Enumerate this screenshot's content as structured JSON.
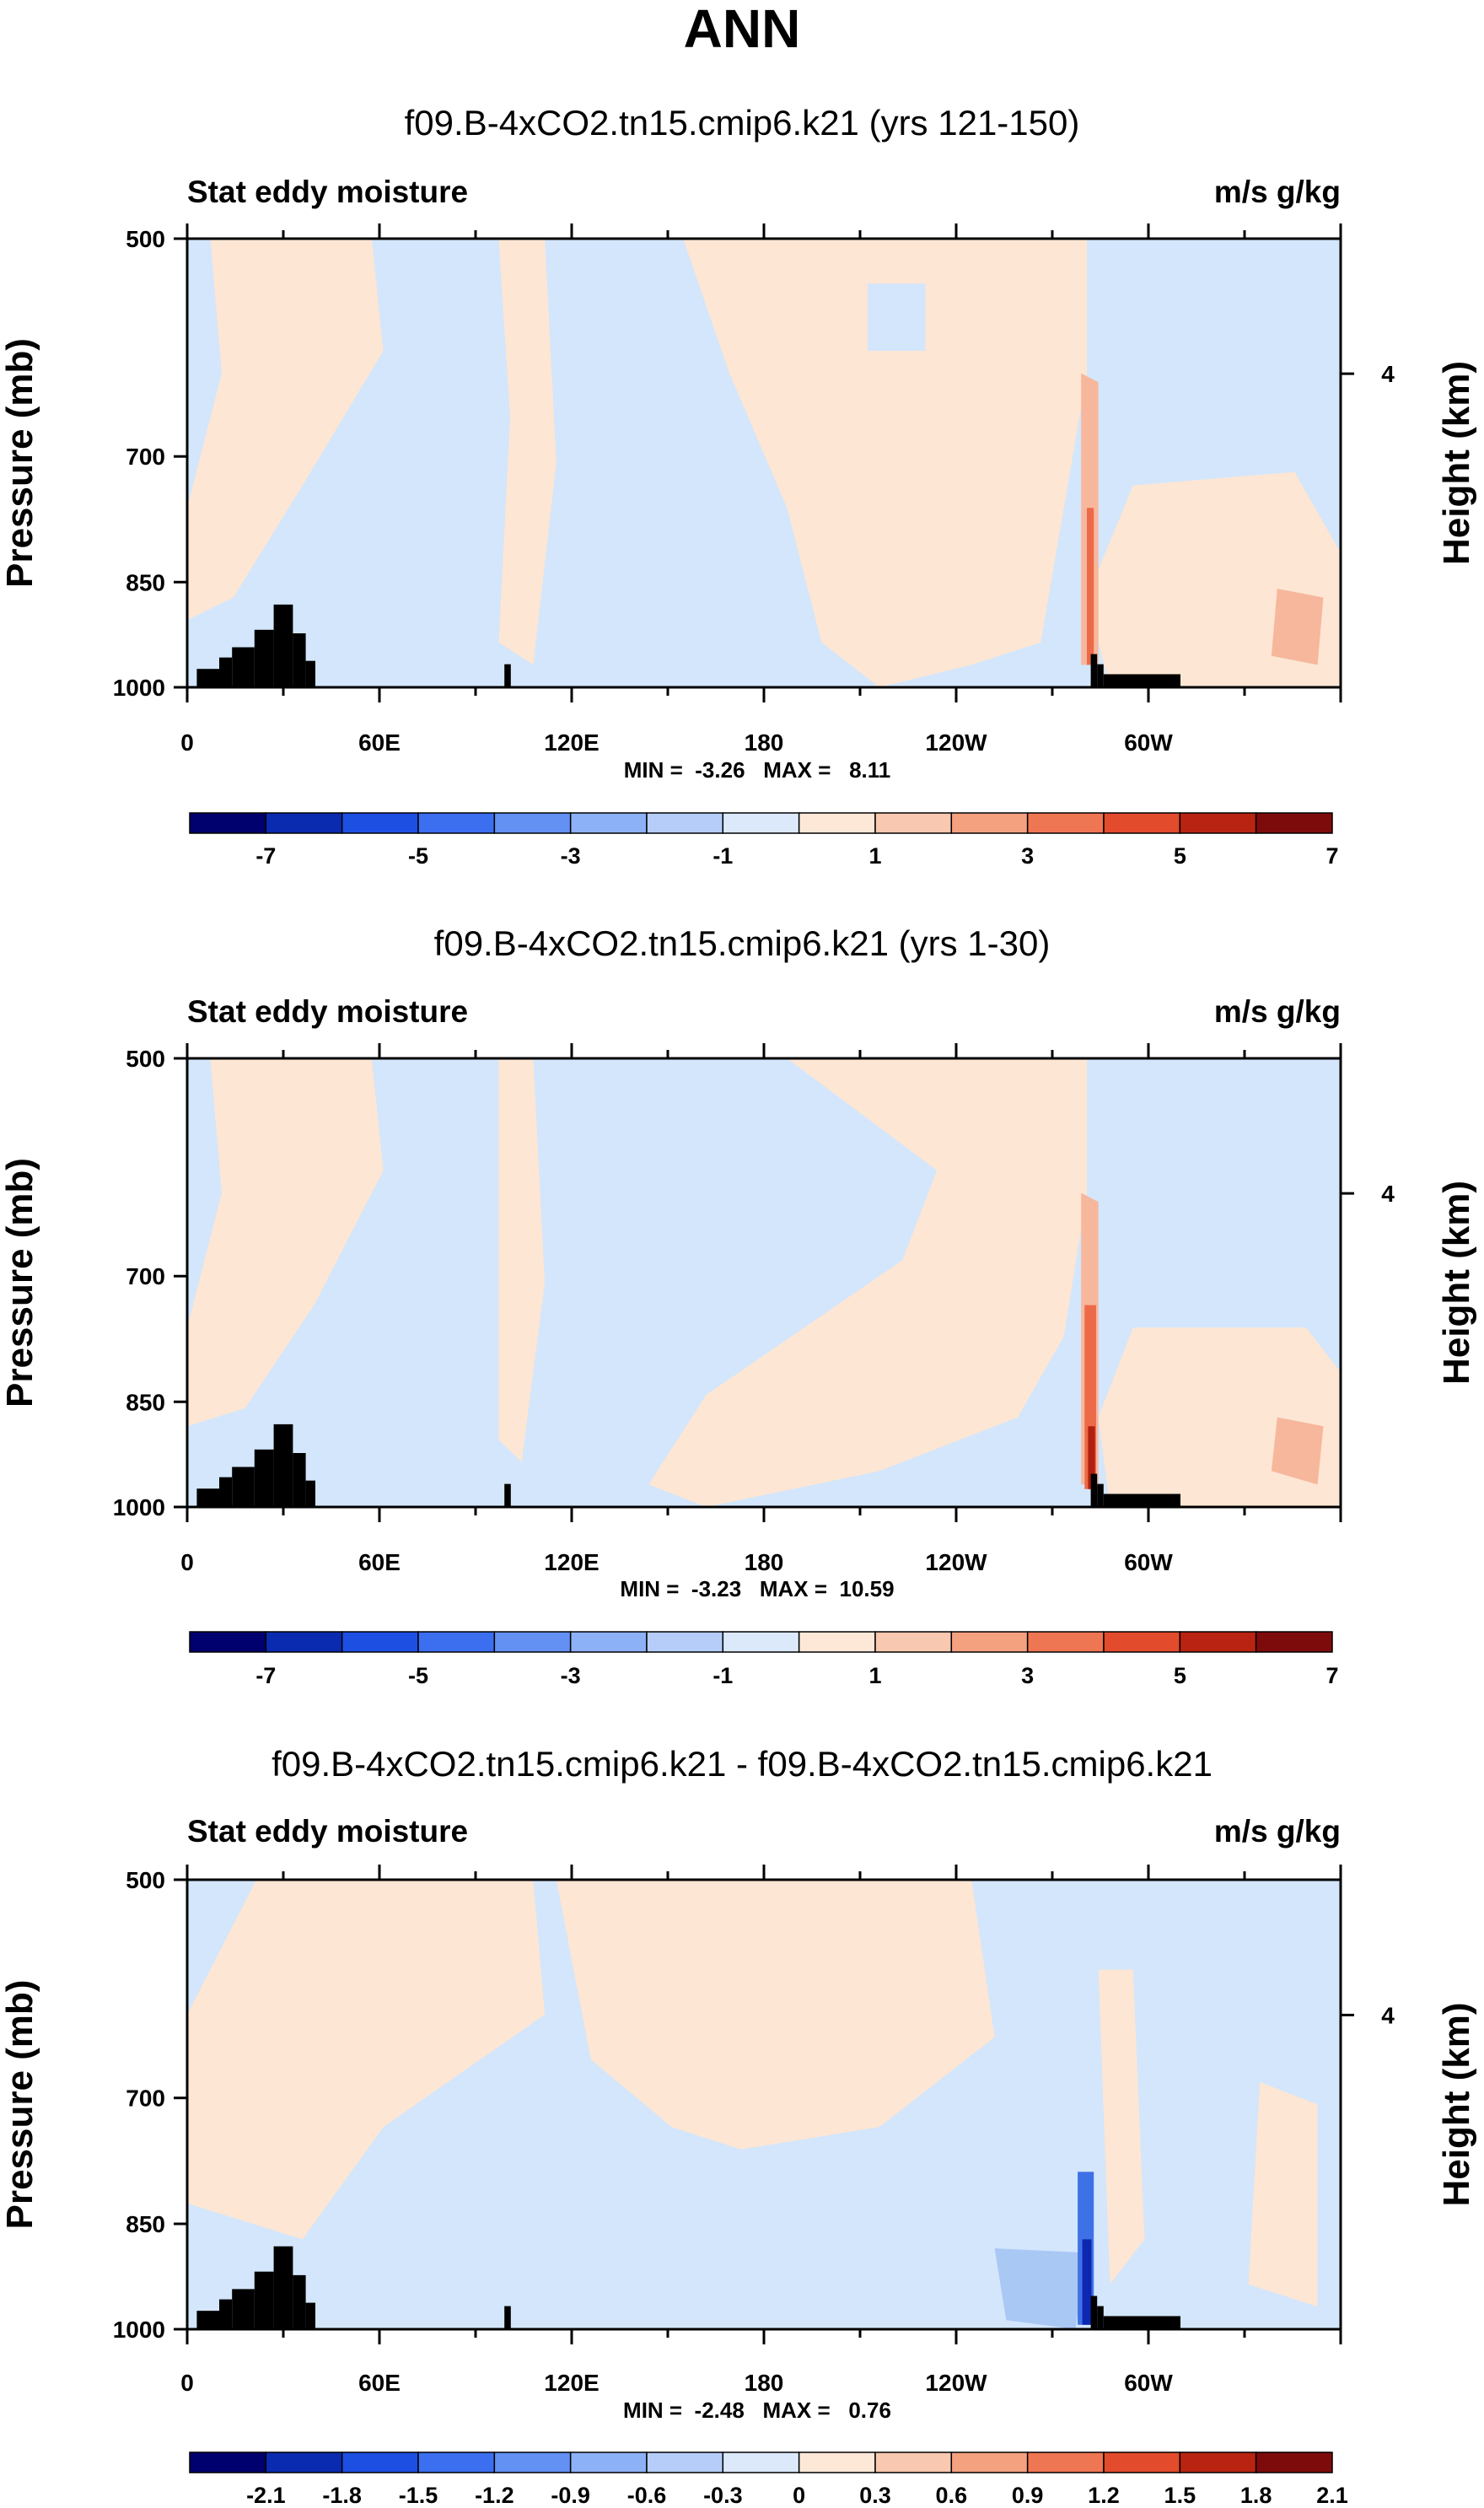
{
  "page_title": "ANN",
  "colors": {
    "light_blue": "#d3e6fb",
    "light_peach": "#fde6d4",
    "salmon": "#f7b79c",
    "orange_red": "#ec6a48",
    "dark_red": "#b01f10",
    "pale_blue": "#a9c8f4",
    "mid_blue": "#3f71e6",
    "deep_blue": "#0d27b0",
    "land": "#000000"
  },
  "chart_data": [
    {
      "type": "heatmap",
      "title": "f09.B-4xCO2.tn15.cmip6.k21 (yrs 121-150)",
      "left_label": "Stat eddy moisture",
      "right_label": "m/s g/kg",
      "ylabel": "Pressure (mb)",
      "ylabel_right": "Height (km)",
      "y_ticks": [
        "500",
        "700",
        "850",
        "1000"
      ],
      "y_ticks_values": [
        500,
        700,
        850,
        1000
      ],
      "y_right_ticks": [
        "4"
      ],
      "x_ticks": [
        "0",
        "60E",
        "120E",
        "180",
        "120W",
        "60W"
      ],
      "x_ticks_values": [
        0,
        60,
        120,
        180,
        240,
        300
      ],
      "xlim": [
        0,
        360
      ],
      "ylim": [
        1000,
        500
      ],
      "stats": "MIN =  -3.26   MAX =   8.11",
      "colorbar_colors": [
        "#00006e",
        "#0a2bb0",
        "#1e4fe3",
        "#3b6ff0",
        "#6290f3",
        "#8db1f6",
        "#b5cdf8",
        "#dbe9fb",
        "#fde8d8",
        "#f9c8b0",
        "#f4a180",
        "#ef7652",
        "#e24b2c",
        "#b82411",
        "#7e0b0b"
      ],
      "colorbar_labels": [
        "-7",
        "-5",
        "-3",
        "-1",
        "1",
        "3",
        "5",
        "7"
      ]
    },
    {
      "type": "heatmap",
      "title": "f09.B-4xCO2.tn15.cmip6.k21 (yrs 1-30)",
      "left_label": "Stat eddy moisture",
      "right_label": "m/s g/kg",
      "ylabel": "Pressure (mb)",
      "ylabel_right": "Height (km)",
      "y_ticks": [
        "500",
        "700",
        "850",
        "1000"
      ],
      "y_ticks_values": [
        500,
        700,
        850,
        1000
      ],
      "y_right_ticks": [
        "4"
      ],
      "x_ticks": [
        "0",
        "60E",
        "120E",
        "180",
        "120W",
        "60W"
      ],
      "x_ticks_values": [
        0,
        60,
        120,
        180,
        240,
        300
      ],
      "xlim": [
        0,
        360
      ],
      "ylim": [
        1000,
        500
      ],
      "stats": "MIN =  -3.23   MAX =  10.59",
      "colorbar_colors": [
        "#00006e",
        "#0a2bb0",
        "#1e4fe3",
        "#3b6ff0",
        "#6290f3",
        "#8db1f6",
        "#b5cdf8",
        "#dbe9fb",
        "#fde8d8",
        "#f9c8b0",
        "#f4a180",
        "#ef7652",
        "#e24b2c",
        "#b82411",
        "#7e0b0b"
      ],
      "colorbar_labels": [
        "-7",
        "-5",
        "-3",
        "-1",
        "1",
        "3",
        "5",
        "7"
      ]
    },
    {
      "type": "heatmap",
      "title": "f09.B-4xCO2.tn15.cmip6.k21 - f09.B-4xCO2.tn15.cmip6.k21",
      "left_label": "Stat eddy moisture",
      "right_label": "m/s g/kg",
      "ylabel": "Pressure (mb)",
      "ylabel_right": "Height (km)",
      "y_ticks": [
        "500",
        "700",
        "850",
        "1000"
      ],
      "y_ticks_values": [
        500,
        700,
        850,
        1000
      ],
      "y_right_ticks": [
        "4"
      ],
      "x_ticks": [
        "0",
        "60E",
        "120E",
        "180",
        "120W",
        "60W"
      ],
      "x_ticks_values": [
        0,
        60,
        120,
        180,
        240,
        300
      ],
      "xlim": [
        0,
        360
      ],
      "ylim": [
        1000,
        500
      ],
      "stats": "MIN =  -2.48   MAX =   0.76",
      "colorbar_colors": [
        "#00006e",
        "#0a2bb0",
        "#1e4fe3",
        "#3b6ff0",
        "#6290f3",
        "#8db1f6",
        "#b5cdf8",
        "#dbe9fb",
        "#fde8d8",
        "#f9c8b0",
        "#f4a180",
        "#ef7652",
        "#e24b2c",
        "#b82411",
        "#7e0b0b"
      ],
      "colorbar_labels": [
        "-2.1",
        "-1.8",
        "-1.5",
        "-1.2",
        "-0.9",
        "-0.6",
        "-0.3",
        "0",
        "0.3",
        "0.6",
        "0.9",
        "1.2",
        "1.5",
        "1.8",
        "2.1"
      ]
    }
  ]
}
